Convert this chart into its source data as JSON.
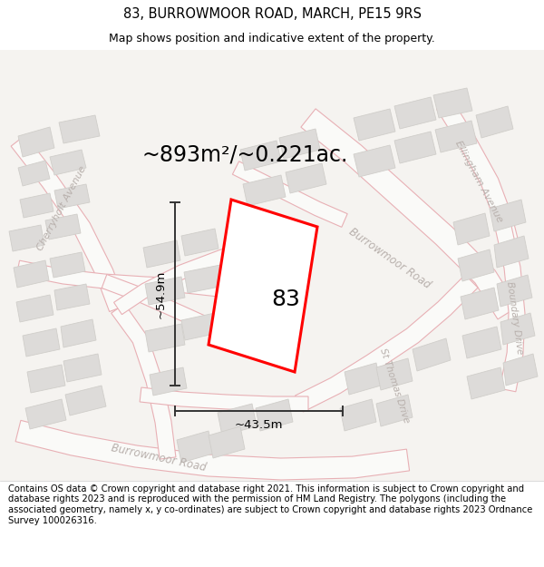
{
  "title": "83, BURROWMOOR ROAD, MARCH, PE15 9RS",
  "subtitle": "Map shows position and indicative extent of the property.",
  "area_text": "~893m²/~0.221ac.",
  "dim_height": "~54.9m",
  "dim_width": "~43.5m",
  "property_label": "83",
  "footer": "Contains OS data © Crown copyright and database right 2021. This information is subject to Crown copyright and database rights 2023 and is reproduced with the permission of HM Land Registry. The polygons (including the associated geometry, namely x, y co-ordinates) are subject to Crown copyright and database rights 2023 Ordnance Survey 100026316.",
  "bg_color": "#f5f3f0",
  "road_stroke": "#e8b0b5",
  "building_fill": "#dddbd9",
  "building_stroke": "#d0ceca",
  "property_fill": "#ffffff",
  "property_color": "#ff0000",
  "dim_color": "#333333",
  "street_label_color": "#b8b0ac",
  "title_fontsize": 10.5,
  "subtitle_fontsize": 9,
  "area_fontsize": 17,
  "footer_fontsize": 7.2,
  "property_label_fontsize": 18,
  "dim_fontsize": 9.5,
  "figsize": [
    6.0,
    6.25
  ],
  "dpi": 100
}
